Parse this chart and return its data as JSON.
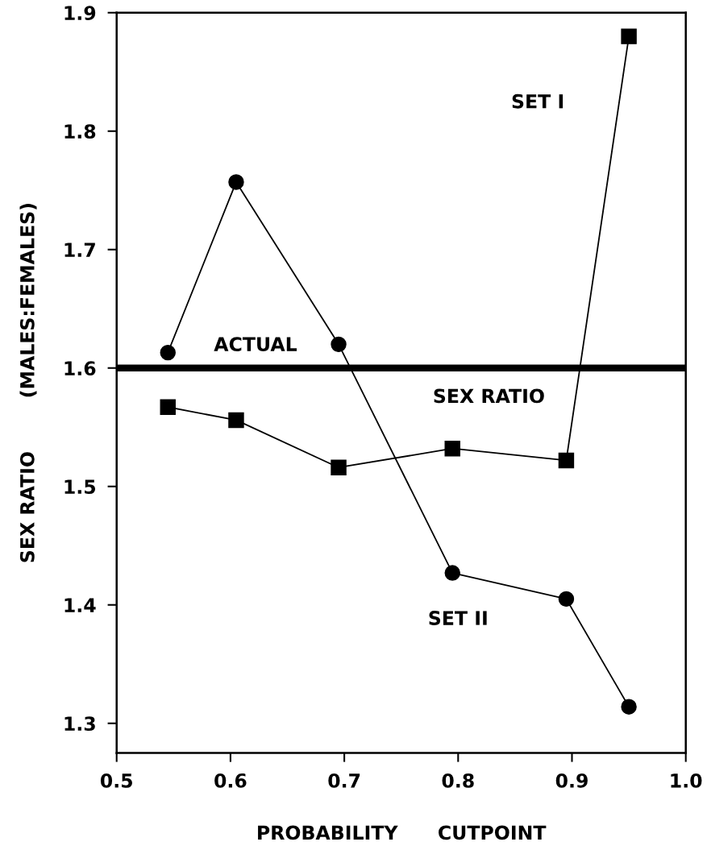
{
  "chart_data": {
    "type": "line",
    "xlabel": "PROBABILITY      CUTPOINT",
    "ylabel": "SEX RATIO        (MALES:FEMALES)",
    "xlim": [
      0.5,
      1.0
    ],
    "ylim": [
      1.275,
      1.9
    ],
    "xticks": [
      0.5,
      0.6,
      0.7,
      0.8,
      0.9,
      {
        "value": 1.0,
        "label": "1.0"
      }
    ],
    "yticks": [
      1.3,
      1.4,
      1.5,
      1.6,
      1.7,
      1.8,
      1.9
    ],
    "grid": false,
    "legend": false,
    "line_style": "solid",
    "series": [
      {
        "name": "SET I",
        "color": "#000000",
        "marker": "square",
        "x": [
          0.545,
          0.605,
          0.695,
          0.795,
          0.895,
          0.95
        ],
        "values": [
          1.567,
          1.556,
          1.516,
          1.532,
          1.522,
          1.88
        ]
      },
      {
        "name": "SET II",
        "color": "#000000",
        "marker": "circle",
        "x": [
          0.545,
          0.605,
          0.695,
          0.795,
          0.895,
          0.95
        ],
        "values": [
          1.613,
          1.757,
          1.62,
          1.427,
          1.405,
          1.314
        ]
      }
    ],
    "ref_lines": [
      {
        "axis": "y",
        "value": 1.6,
        "color": "#000000"
      }
    ],
    "annotations": [
      "ACTUAL",
      "SEX RATIO"
    ]
  }
}
